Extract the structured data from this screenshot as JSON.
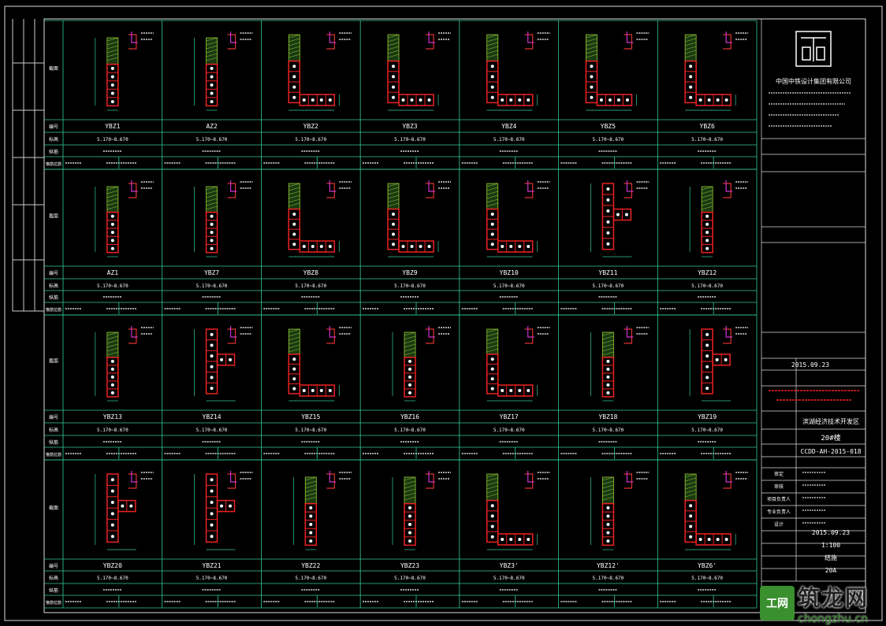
{
  "drawing": {
    "columns": [
      [
        "YBZ1",
        "AZ2",
        "YBZ2",
        "YBZ3",
        "YBZ4",
        "YBZ5",
        "YBZ6"
      ],
      [
        "AZ1",
        "YBZ7",
        "YBZ8",
        "YBZ9",
        "YBZ10",
        "YBZ11",
        "YBZ12"
      ],
      [
        "YBZ13",
        "YBZ14",
        "YBZ15",
        "YBZ16",
        "YBZ17",
        "YBZ18",
        "YBZ19"
      ],
      [
        "YBZ20",
        "YBZ21",
        "YBZ22",
        "YBZ23",
        "YBZ3'",
        "YBZ12'",
        "YBZ6'"
      ]
    ],
    "shapes": [
      [
        "rect",
        "rect",
        "L",
        "L",
        "L",
        "L",
        "L"
      ],
      [
        "rect",
        "rect",
        "L",
        "L",
        "L",
        "T",
        "rect"
      ],
      [
        "rect",
        "T",
        "L",
        "rect",
        "L",
        "rect",
        "T"
      ],
      [
        "T",
        "T",
        "rect",
        "rect",
        "L",
        "rect",
        "L"
      ]
    ],
    "elevation": [
      "5.170~8.670",
      "5.170~8.670",
      "5.170~8.670",
      "5.170~8.670",
      "5.170~8.670",
      "5.170~8.670",
      "5.170~8.670"
    ],
    "row_labels": [
      "截面",
      "编号",
      "标高",
      "纵筋",
      "箍筋拉筋"
    ]
  },
  "title_block": {
    "company": "中国中铁设计集团有限公司",
    "date": "2015.09.23",
    "project": "滨湖经济技术开发区",
    "building": "20#楼",
    "drawing_no": "CCDD-AH-2015-018",
    "roles": [
      "审定",
      "审核",
      "项目负责人",
      "专业负责人",
      "设计"
    ],
    "date2": "2015.09.23",
    "scale": "1:100",
    "sheet_label": "结施",
    "sheet_no": "20A"
  },
  "watermark": {
    "cn": "筑龙网",
    "url": "chongzhu.cn",
    "logo": "工网"
  }
}
